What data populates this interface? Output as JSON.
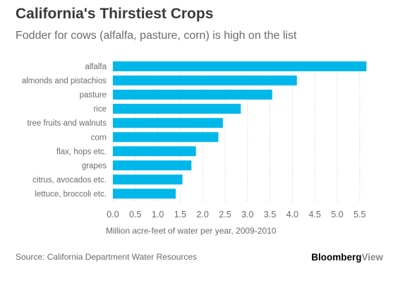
{
  "chart_data": {
    "type": "bar",
    "orientation": "horizontal",
    "title": "California's Thirstiest Crops",
    "subtitle": "Fodder for cows (alfalfa, pasture, corn) is high on the list",
    "xlabel": "Million acre-feet of water per year, 2009-2010",
    "ylabel": "",
    "categories": [
      "alfalfa",
      "almonds and pistachios",
      "pasture",
      "rice",
      "tree fruits and walnuts",
      "corn",
      "flax, hops etc.",
      "grapes",
      "citrus, avocados etc.",
      "lettuce, broccoli etc."
    ],
    "values": [
      5.65,
      4.1,
      3.55,
      2.85,
      2.45,
      2.35,
      1.85,
      1.75,
      1.55,
      1.4
    ],
    "xlim": [
      0,
      5.8
    ],
    "xticks": [
      "0.0",
      "0.5",
      "1.0",
      "1.5",
      "2.0",
      "2.5",
      "3.0",
      "3.5",
      "4.0",
      "4.5",
      "5.0",
      "5.5"
    ],
    "grid": true,
    "bar_color": "#00b7ea",
    "source": "Source: California Department Water Resources"
  },
  "colors": {
    "bar": "#00b7ea",
    "grid": "#d4d4d4",
    "label_text": "#6b6b6b"
  },
  "brand": {
    "part1": "Bloomberg",
    "part2": "View"
  }
}
